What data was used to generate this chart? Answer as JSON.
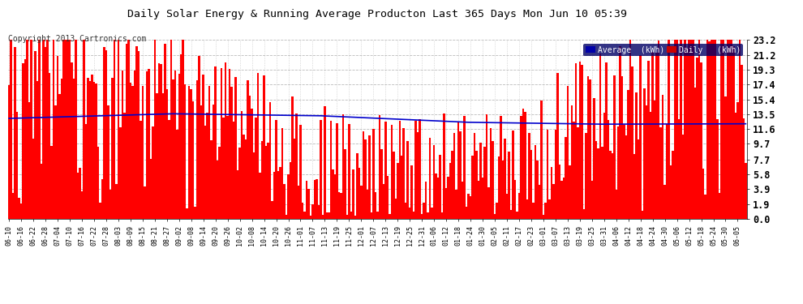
{
  "title": "Daily Solar Energy & Running Average Producton Last 365 Days Mon Jun 10 05:39",
  "copyright": "Copyright 2013 Cartronics.com",
  "bar_color": "#ff0000",
  "avg_line_color": "#0000cc",
  "background_color": "#ffffff",
  "plot_bg_color": "#ffffff",
  "grid_color": "#aaaaaa",
  "yticks": [
    0.0,
    1.9,
    3.9,
    5.8,
    7.7,
    9.7,
    11.6,
    13.5,
    15.4,
    17.4,
    19.3,
    21.2,
    23.2
  ],
  "ylim": [
    0,
    23.2
  ],
  "legend_avg_bg": "#0000aa",
  "legend_daily_bg": "#cc0000",
  "num_bars": 365,
  "x_labels": [
    "06-10",
    "06-16",
    "06-22",
    "06-28",
    "07-04",
    "07-10",
    "07-16",
    "07-22",
    "07-28",
    "08-03",
    "08-09",
    "08-15",
    "08-21",
    "08-27",
    "09-02",
    "09-08",
    "09-14",
    "09-20",
    "09-26",
    "10-02",
    "10-08",
    "10-14",
    "10-20",
    "10-26",
    "11-01",
    "11-07",
    "11-13",
    "11-19",
    "11-25",
    "12-01",
    "12-07",
    "12-13",
    "12-19",
    "12-25",
    "12-31",
    "01-06",
    "01-12",
    "01-18",
    "01-24",
    "01-30",
    "02-05",
    "02-11",
    "02-17",
    "02-23",
    "03-01",
    "03-07",
    "03-13",
    "03-19",
    "03-25",
    "03-31",
    "04-06",
    "04-12",
    "04-18",
    "04-24",
    "04-30",
    "05-06",
    "05-12",
    "05-18",
    "05-24",
    "05-30",
    "06-05"
  ],
  "x_label_step": 6
}
